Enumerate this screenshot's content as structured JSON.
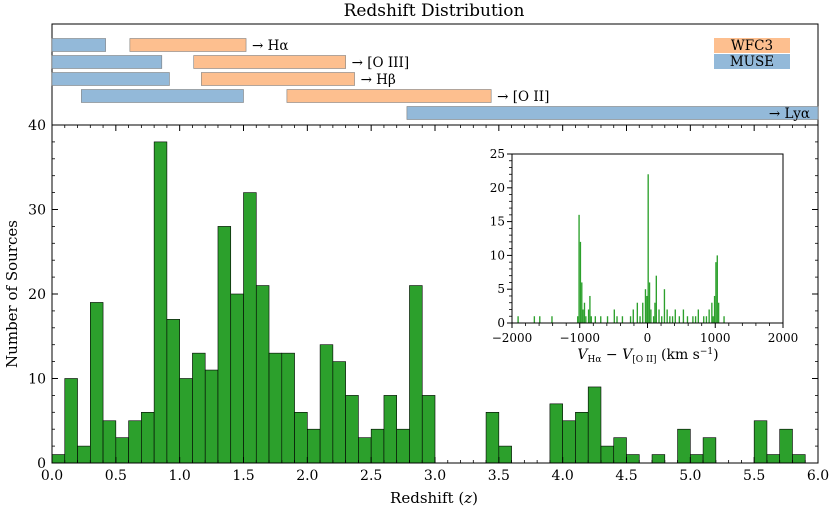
{
  "chart_data": {
    "type": "bar",
    "title": "Redshift Distribution",
    "xlabel": "Redshift (z)",
    "ylabel": "Number of Sources",
    "xlim": [
      0.0,
      6.0
    ],
    "ylim": [
      0,
      40
    ],
    "bin_width": 0.1,
    "x_ticks": [
      "0.0",
      "0.5",
      "1.0",
      "1.5",
      "2.0",
      "2.5",
      "3.0",
      "3.5",
      "4.0",
      "4.5",
      "5.0",
      "5.5",
      "6.0"
    ],
    "y_ticks": [
      "0",
      "10",
      "20",
      "30",
      "40"
    ],
    "bar_color": "#2ca02c",
    "bins": [
      {
        "x": 0.0,
        "count": 1
      },
      {
        "x": 0.1,
        "count": 10
      },
      {
        "x": 0.2,
        "count": 2
      },
      {
        "x": 0.3,
        "count": 19
      },
      {
        "x": 0.4,
        "count": 5
      },
      {
        "x": 0.5,
        "count": 3
      },
      {
        "x": 0.6,
        "count": 5
      },
      {
        "x": 0.7,
        "count": 6
      },
      {
        "x": 0.8,
        "count": 38
      },
      {
        "x": 0.9,
        "count": 17
      },
      {
        "x": 1.0,
        "count": 10
      },
      {
        "x": 1.1,
        "count": 13
      },
      {
        "x": 1.2,
        "count": 11
      },
      {
        "x": 1.3,
        "count": 28
      },
      {
        "x": 1.4,
        "count": 20
      },
      {
        "x": 1.5,
        "count": 32
      },
      {
        "x": 1.6,
        "count": 21
      },
      {
        "x": 1.7,
        "count": 13
      },
      {
        "x": 1.8,
        "count": 13
      },
      {
        "x": 1.9,
        "count": 6
      },
      {
        "x": 2.0,
        "count": 4
      },
      {
        "x": 2.1,
        "count": 14
      },
      {
        "x": 2.2,
        "count": 12
      },
      {
        "x": 2.3,
        "count": 8
      },
      {
        "x": 2.4,
        "count": 3
      },
      {
        "x": 2.5,
        "count": 4
      },
      {
        "x": 2.6,
        "count": 8
      },
      {
        "x": 2.7,
        "count": 4
      },
      {
        "x": 2.8,
        "count": 21
      },
      {
        "x": 2.9,
        "count": 8
      },
      {
        "x": 3.4,
        "count": 6
      },
      {
        "x": 3.5,
        "count": 2
      },
      {
        "x": 3.9,
        "count": 7
      },
      {
        "x": 4.0,
        "count": 5
      },
      {
        "x": 4.1,
        "count": 6
      },
      {
        "x": 4.2,
        "count": 9
      },
      {
        "x": 4.3,
        "count": 2
      },
      {
        "x": 4.4,
        "count": 3
      },
      {
        "x": 4.5,
        "count": 1
      },
      {
        "x": 4.7,
        "count": 1
      },
      {
        "x": 4.9,
        "count": 4
      },
      {
        "x": 5.0,
        "count": 1
      },
      {
        "x": 5.1,
        "count": 3
      },
      {
        "x": 5.5,
        "count": 5
      },
      {
        "x": 5.6,
        "count": 1
      },
      {
        "x": 5.7,
        "count": 4
      },
      {
        "x": 5.8,
        "count": 1
      }
    ],
    "instrument_ranges": {
      "legend": [
        {
          "name": "WFC3",
          "color": "#fdbf8f"
        },
        {
          "name": "MUSE",
          "color": "#93b9d9"
        }
      ],
      "rows": [
        {
          "label": "→ Hα",
          "bars": [
            {
              "instrument": "MUSE",
              "z_start": 0.0,
              "z_end": 0.42
            },
            {
              "instrument": "WFC3",
              "z_start": 0.61,
              "z_end": 1.52
            }
          ]
        },
        {
          "label": "→ [O III]",
          "bars": [
            {
              "instrument": "MUSE",
              "z_start": 0.0,
              "z_end": 0.86
            },
            {
              "instrument": "WFC3",
              "z_start": 1.11,
              "z_end": 2.3
            }
          ]
        },
        {
          "label": "→ Hβ",
          "bars": [
            {
              "instrument": "MUSE",
              "z_start": 0.0,
              "z_end": 0.92
            },
            {
              "instrument": "WFC3",
              "z_start": 1.17,
              "z_end": 2.37
            }
          ]
        },
        {
          "label": "→ [O II]",
          "bars": [
            {
              "instrument": "MUSE",
              "z_start": 0.23,
              "z_end": 1.5
            },
            {
              "instrument": "WFC3",
              "z_start": 1.84,
              "z_end": 3.44
            }
          ]
        },
        {
          "label": "→ Lyα",
          "bars": [
            {
              "instrument": "MUSE",
              "z_start": 2.78,
              "z_end": 6.0
            }
          ]
        }
      ]
    },
    "inset": {
      "type": "bar",
      "xlabel": "V_Hα − V_[O II] (km s⁻¹)",
      "xlabel_main_v": "V",
      "xlabel_sub1": "Hα",
      "xlabel_minus": "−",
      "xlabel_sub2": "[O II]",
      "xlabel_units": "(km s",
      "xlabel_exp": "−1",
      "xlabel_close": ")",
      "xlim": [
        -2000,
        2000
      ],
      "ylim": [
        0,
        25
      ],
      "x_ticks": [
        "−2000",
        "−1000",
        "0",
        "1000",
        "2000"
      ],
      "y_ticks": [
        "0",
        "5",
        "10",
        "15",
        "20",
        "25"
      ],
      "bin_width": 20,
      "bar_color": "#2ca02c",
      "bins": [
        {
          "x": -1920,
          "count": 1
        },
        {
          "x": -1680,
          "count": 1
        },
        {
          "x": -1600,
          "count": 1
        },
        {
          "x": -1420,
          "count": 1
        },
        {
          "x": -1040,
          "count": 1
        },
        {
          "x": -1020,
          "count": 16
        },
        {
          "x": -1000,
          "count": 12
        },
        {
          "x": -980,
          "count": 6
        },
        {
          "x": -960,
          "count": 2
        },
        {
          "x": -940,
          "count": 3
        },
        {
          "x": -920,
          "count": 1
        },
        {
          "x": -880,
          "count": 2
        },
        {
          "x": -860,
          "count": 4
        },
        {
          "x": -840,
          "count": 1
        },
        {
          "x": -780,
          "count": 1
        },
        {
          "x": -700,
          "count": 1
        },
        {
          "x": -600,
          "count": 1
        },
        {
          "x": -500,
          "count": 2
        },
        {
          "x": -460,
          "count": 1
        },
        {
          "x": -380,
          "count": 1
        },
        {
          "x": -260,
          "count": 1
        },
        {
          "x": -220,
          "count": 2
        },
        {
          "x": -160,
          "count": 3
        },
        {
          "x": -120,
          "count": 1
        },
        {
          "x": -80,
          "count": 3
        },
        {
          "x": -40,
          "count": 5
        },
        {
          "x": -20,
          "count": 4
        },
        {
          "x": 0,
          "count": 22
        },
        {
          "x": 20,
          "count": 6
        },
        {
          "x": 40,
          "count": 2
        },
        {
          "x": 80,
          "count": 1
        },
        {
          "x": 100,
          "count": 3
        },
        {
          "x": 120,
          "count": 7
        },
        {
          "x": 160,
          "count": 2
        },
        {
          "x": 200,
          "count": 1
        },
        {
          "x": 240,
          "count": 5
        },
        {
          "x": 280,
          "count": 2
        },
        {
          "x": 320,
          "count": 1
        },
        {
          "x": 360,
          "count": 1
        },
        {
          "x": 400,
          "count": 2
        },
        {
          "x": 460,
          "count": 1
        },
        {
          "x": 520,
          "count": 2
        },
        {
          "x": 580,
          "count": 1
        },
        {
          "x": 660,
          "count": 1
        },
        {
          "x": 700,
          "count": 1
        },
        {
          "x": 740,
          "count": 2
        },
        {
          "x": 820,
          "count": 1
        },
        {
          "x": 860,
          "count": 1
        },
        {
          "x": 900,
          "count": 2
        },
        {
          "x": 940,
          "count": 3
        },
        {
          "x": 960,
          "count": 1
        },
        {
          "x": 980,
          "count": 4
        },
        {
          "x": 1000,
          "count": 9
        },
        {
          "x": 1020,
          "count": 10
        },
        {
          "x": 1040,
          "count": 3
        },
        {
          "x": 1120,
          "count": 1
        }
      ]
    }
  }
}
